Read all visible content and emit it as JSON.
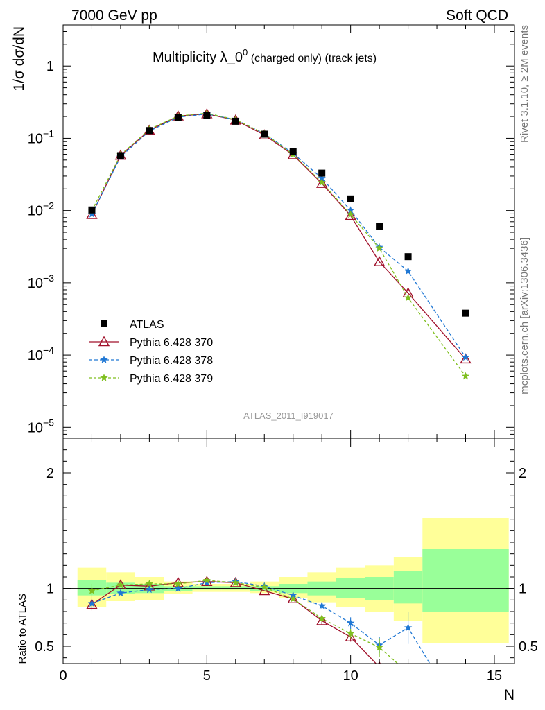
{
  "header": {
    "left": "7000 GeV pp",
    "right": "Soft QCD"
  },
  "title": {
    "main": "Multiplicity λ_0",
    "sup": "0",
    "sub": " (charged only) (track jets)"
  },
  "side": {
    "rivet": "Rivet 3.1.10, ≥ 2M events",
    "mcplots": "mcplots.cern.ch [arXiv:1306.3436]"
  },
  "watermark": "ATLAS_2011_I919017",
  "colors": {
    "data": "#000000",
    "s370": "#a0102a",
    "s378": "#1f77d4",
    "s379": "#7fbf1f",
    "band_yellow": "#ffff99",
    "band_green": "#99ff99"
  },
  "chart_data": [
    {
      "type": "scatter",
      "ylabel": "1/σ dσ/dN",
      "yscale": "log",
      "xlim": [
        0,
        15.7
      ],
      "ylim": [
        7.07e-06,
        3.7
      ],
      "yticks": [
        {
          "value": 1e-05,
          "base": "10",
          "exp": "−5"
        },
        {
          "value": 0.0001,
          "base": "10",
          "exp": "−4"
        },
        {
          "value": 0.001,
          "base": "10",
          "exp": "−3"
        },
        {
          "value": 0.01,
          "base": "10",
          "exp": "−2"
        },
        {
          "value": 0.1,
          "base": "10",
          "exp": "−1"
        },
        {
          "value": 1,
          "base": "1",
          "exp": ""
        }
      ],
      "legend_position": "bottom-left",
      "data": {
        "name": "ATLAS",
        "x": [
          1,
          2,
          3,
          4,
          5,
          6,
          7,
          8,
          9,
          10,
          11,
          12,
          14
        ],
        "y": [
          0.0102,
          0.0575,
          0.128,
          0.195,
          0.208,
          0.172,
          0.114,
          0.066,
          0.033,
          0.0145,
          0.0061,
          0.0023,
          0.00038
        ]
      },
      "series": [
        {
          "name": "Pythia 6.428 370",
          "key": "s370",
          "marker": "triangle",
          "x": [
            1,
            2,
            3,
            4,
            5,
            6,
            7,
            8,
            9,
            10,
            11,
            12,
            14
          ],
          "y": [
            0.0088,
            0.058,
            0.129,
            0.203,
            0.217,
            0.178,
            0.111,
            0.059,
            0.0237,
            0.0085,
            0.00195,
            0.00072,
            8.8e-05
          ]
        },
        {
          "name": "Pythia 6.428 378",
          "key": "s378",
          "marker": "star",
          "x": [
            1,
            2,
            3,
            4,
            5,
            6,
            7,
            8,
            9,
            10,
            11,
            12,
            14
          ],
          "y": [
            0.0089,
            0.0555,
            0.126,
            0.196,
            0.217,
            0.181,
            0.116,
            0.062,
            0.028,
            0.0101,
            0.0031,
            0.00145,
            9.3e-05
          ]
        },
        {
          "name": "Pythia 6.428 379",
          "key": "s379",
          "marker": "star",
          "x": [
            1,
            2,
            3,
            4,
            5,
            6,
            7,
            8,
            9,
            10,
            11,
            12,
            14
          ],
          "y": [
            0.01,
            0.059,
            0.133,
            0.203,
            0.222,
            0.181,
            0.116,
            0.06,
            0.0245,
            0.0088,
            0.003,
            0.00062,
            5.1e-05
          ]
        }
      ]
    },
    {
      "type": "line",
      "ylabel": "Ratio to ATLAS",
      "xlabel": "N",
      "xlim": [
        0,
        15.7
      ],
      "ylim": [
        0.35,
        2.3
      ],
      "xticks": [
        0,
        5,
        10,
        15
      ],
      "yticks": [
        0.5,
        1,
        2
      ],
      "reference_line": 1,
      "bands": {
        "edges": [
          0.5,
          1.5,
          2.5,
          3.5,
          4.5,
          5.5,
          6.5,
          7.5,
          8.5,
          9.5,
          10.5,
          11.5,
          12.5,
          15.5
        ],
        "yellow_lo": [
          0.84,
          0.89,
          0.9,
          0.95,
          0.97,
          0.97,
          0.96,
          0.92,
          0.88,
          0.84,
          0.8,
          0.72,
          0.53
        ],
        "yellow_hi": [
          1.18,
          1.14,
          1.1,
          1.06,
          1.04,
          1.04,
          1.06,
          1.1,
          1.14,
          1.18,
          1.2,
          1.27,
          1.61
        ],
        "green_lo": [
          0.94,
          0.95,
          0.96,
          0.98,
          0.99,
          0.99,
          0.98,
          0.96,
          0.94,
          0.92,
          0.9,
          0.87,
          0.8
        ],
        "green_hi": [
          1.07,
          1.05,
          1.04,
          1.02,
          1.02,
          1.02,
          1.02,
          1.04,
          1.06,
          1.09,
          1.1,
          1.15,
          1.34
        ]
      },
      "series": [
        {
          "name": "Pythia 6.428 370",
          "key": "s370",
          "marker": "triangle",
          "x": [
            1,
            2,
            3,
            4,
            5,
            6,
            7,
            8,
            9,
            10,
            11
          ],
          "y": [
            0.86,
            1.03,
            1.02,
            1.05,
            1.06,
            1.05,
            0.98,
            0.91,
            0.72,
            0.58,
            0.32
          ],
          "err": [
            0.05,
            0,
            0,
            0,
            0,
            0,
            0,
            0.02,
            0.03,
            0.04,
            0
          ]
        },
        {
          "name": "Pythia 6.428 378",
          "key": "s378",
          "marker": "star",
          "x": [
            1,
            2,
            3,
            4,
            5,
            6,
            7,
            8,
            9,
            10,
            11,
            12,
            13
          ],
          "y": [
            0.87,
            0.96,
            0.99,
            1.0,
            1.05,
            1.06,
            1.02,
            0.94,
            0.85,
            0.7,
            0.51,
            0.66,
            0.25
          ],
          "err": [
            0.04,
            0,
            0,
            0,
            0,
            0,
            0,
            0.02,
            0.03,
            0.05,
            0.07,
            0.14,
            0
          ]
        },
        {
          "name": "Pythia 6.428 379",
          "key": "s379",
          "marker": "star",
          "x": [
            1,
            2,
            3,
            4,
            5,
            6,
            7,
            8,
            9,
            10,
            11,
            12
          ],
          "y": [
            0.98,
            1.03,
            1.04,
            1.04,
            1.07,
            1.05,
            1.01,
            0.91,
            0.74,
            0.61,
            0.49,
            0.27
          ],
          "err": [
            0.06,
            0,
            0,
            0,
            0,
            0,
            0,
            0.02,
            0.03,
            0.04,
            0.08,
            0
          ]
        }
      ]
    }
  ]
}
